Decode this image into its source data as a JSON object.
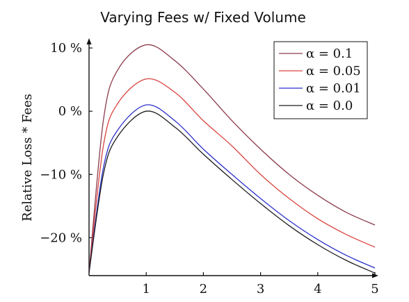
{
  "chart_data": {
    "type": "line",
    "title": "Varying Fees w/ Fixed Volume",
    "xlabel": "",
    "ylabel": "Relative Loss * Fees",
    "xlim": [
      0.0,
      5.0
    ],
    "ylim": [
      -26,
      11
    ],
    "x_ticks": [
      1,
      2,
      3,
      4,
      5
    ],
    "x_tick_labels": [
      "1",
      "2",
      "3",
      "4",
      "5"
    ],
    "y_ticks": [
      10,
      0,
      -10,
      -20
    ],
    "y_tick_labels": [
      "10 %",
      "0 %",
      "−10 %",
      "−20 %"
    ],
    "grid": false,
    "legend_position": "top-right",
    "x": [
      0.0,
      0.25,
      0.5,
      1.0,
      1.5,
      2.0,
      2.5,
      3.0,
      3.5,
      4.0,
      4.5,
      5.0
    ],
    "series": [
      {
        "name": "α = 0.1",
        "color": "#8b3a4a",
        "values": [
          -25.5,
          -1.5,
          6.5,
          10.5,
          8.0,
          3.5,
          -1.5,
          -6.0,
          -10.0,
          -13.3,
          -16.0,
          -18.0
        ]
      },
      {
        "name": "α = 0.05",
        "color": "#d9433f",
        "values": [
          -25.5,
          -5.5,
          1.2,
          5.1,
          3.0,
          -1.5,
          -5.5,
          -10.0,
          -13.8,
          -17.0,
          -19.5,
          -21.5
        ]
      },
      {
        "name": "α = 0.01",
        "color": "#2a2fc9",
        "values": [
          -25.5,
          -9.0,
          -3.0,
          1.0,
          -1.5,
          -6.0,
          -10.0,
          -13.8,
          -17.3,
          -20.3,
          -22.8,
          -24.8
        ]
      },
      {
        "name": "α = 0.0",
        "color": "#1a1a1a",
        "values": [
          -25.5,
          -10.0,
          -4.0,
          0.0,
          -2.5,
          -6.8,
          -10.8,
          -14.6,
          -18.1,
          -21.1,
          -23.6,
          -25.6
        ]
      }
    ]
  }
}
